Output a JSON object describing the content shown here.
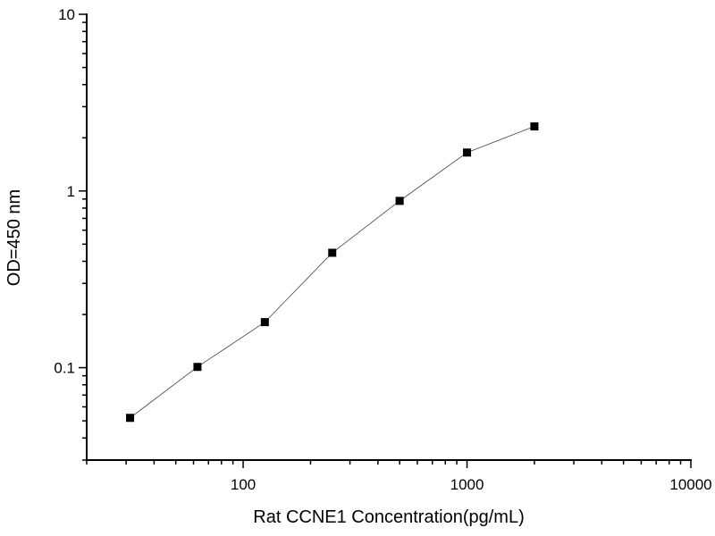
{
  "chart_data": {
    "type": "line",
    "title": "",
    "xlabel": "Rat CCNE1 Concentration(pg/mL)",
    "ylabel": "OD=450 nm",
    "xscale": "log",
    "yscale": "log",
    "xlim": [
      20,
      10000
    ],
    "ylim": [
      0.03,
      10
    ],
    "xticks": [
      100,
      1000,
      10000
    ],
    "xtick_labels": [
      "100",
      "1000",
      "10000"
    ],
    "yticks": [
      0.1,
      1,
      10
    ],
    "ytick_labels": [
      "0.1",
      "1",
      "10"
    ],
    "grid": false,
    "legend": "none",
    "marker": "square",
    "color": "#000000",
    "series": [
      {
        "x": [
          31.25,
          62.5,
          125,
          250,
          500,
          1000,
          2000
        ],
        "y": [
          0.052,
          0.101,
          0.181,
          0.447,
          0.879,
          1.65,
          2.32
        ]
      }
    ]
  }
}
